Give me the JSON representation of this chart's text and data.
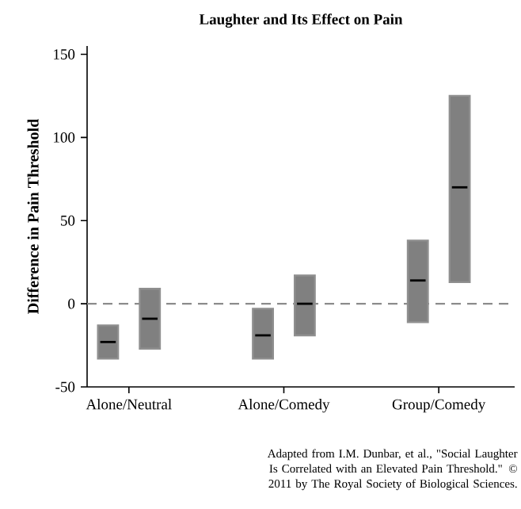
{
  "chart_data": {
    "type": "box",
    "title": "Laughter and Its Effect on Pain",
    "ylabel": "Difference in Pain Threshold",
    "categories": [
      "Alone/Neutral",
      "Alone/Comedy",
      "Group/Comedy"
    ],
    "series": [
      {
        "color": "#808080",
        "boxes": [
          {
            "low": -33,
            "q1": -33,
            "median": -23,
            "q3": -13,
            "high": -13
          },
          {
            "low": -33,
            "q1": -33,
            "median": -19,
            "q3": -3,
            "high": -3
          },
          {
            "low": -11,
            "q1": -11,
            "median": 14,
            "q3": 38,
            "high": 38
          }
        ]
      },
      {
        "color": "#808080",
        "boxes": [
          {
            "low": -27,
            "q1": -27,
            "median": -9,
            "q3": 9,
            "high": 9
          },
          {
            "low": -19,
            "q1": -19,
            "median": 0,
            "q3": 17,
            "high": 17
          },
          {
            "low": 13,
            "q1": 13,
            "median": 70,
            "q3": 125,
            "high": 125
          }
        ]
      }
    ],
    "ylim": [
      -50,
      155
    ],
    "yticks": [
      -50,
      0,
      50,
      100,
      150
    ],
    "ref_lines": [
      {
        "axis": "y",
        "value": 0,
        "color": "#8c8c8c",
        "line_style": "dashed"
      }
    ],
    "annotations": [
      "Adapted from I.M. Dunbar, et al., \"Social Laughter Is Correlated with an Elevated Pain Threshold.\" © 2011 by The Royal Society of Biological Sciences."
    ]
  }
}
